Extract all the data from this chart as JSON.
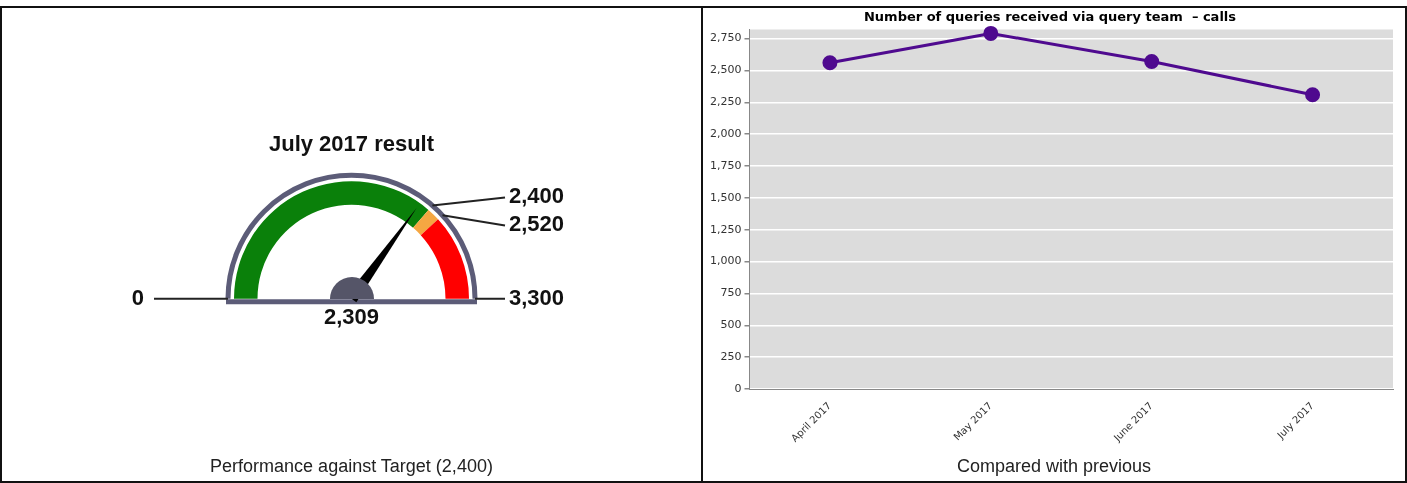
{
  "chart_data": [
    {
      "type": "donut",
      "title": "July 2017 result",
      "categories": [
        "2,400",
        "2,520",
        "3,300"
      ],
      "values": [
        72.73,
        3.63,
        23.64
      ],
      "colors": [
        "#0a800a",
        "#f5a742",
        "#ff0000"
      ],
      "needle": "2,400",
      "annotations": [
        "2,309",
        "Performance against Target (2,400)",
        "0"
      ],
      "legend": false
    },
    {
      "type": "line",
      "title": "Number of queries received via query team  – calls",
      "categories": [
        "April 2017",
        "May 2017",
        "June 2017",
        "July 2017"
      ],
      "series": [
        {
          "color": "#4f0a8f",
          "values": [
            2560,
            2790,
            2570,
            2309
          ]
        }
      ],
      "ylim": [
        0,
        2820
      ],
      "yticks": [
        {
          "value": 0,
          "label": "0"
        },
        {
          "value": 250,
          "label": "250"
        },
        {
          "value": 500,
          "label": "500"
        },
        {
          "value": 750,
          "label": "750"
        },
        {
          "value": 1000,
          "label": "1,000"
        },
        {
          "value": 1250,
          "label": "1,250"
        },
        {
          "value": 1500,
          "label": "1,500"
        },
        {
          "value": 1750,
          "label": "1,750"
        },
        {
          "value": 2000,
          "label": "2,000"
        },
        {
          "value": 2250,
          "label": "2,250"
        },
        {
          "value": 2500,
          "label": "2,500"
        },
        {
          "value": 2750,
          "label": "2,750"
        }
      ],
      "grid": "y",
      "marker": "circle",
      "line_style": "solid",
      "legend": false,
      "annotations": [
        "Compared with previous"
      ]
    }
  ]
}
